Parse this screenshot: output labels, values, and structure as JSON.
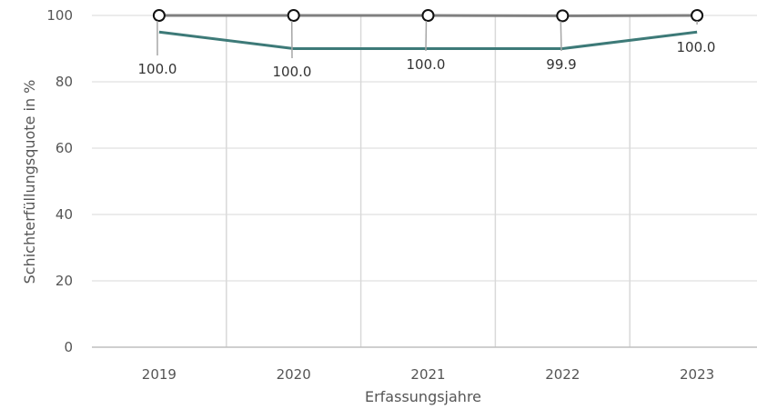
{
  "chart_data": {
    "type": "line",
    "title": "",
    "xlabel": "Erfassungsjahre",
    "ylabel": "Schichterfüllungsquote in %",
    "categories": [
      "2019",
      "2020",
      "2021",
      "2022",
      "2023"
    ],
    "ylim": [
      0,
      100
    ],
    "yticks": [
      0,
      20,
      40,
      60,
      80,
      100
    ],
    "grid": true,
    "series": [
      {
        "values": [
          100.0,
          100.0,
          100.0,
          99.9,
          100.0
        ],
        "labels": [
          "100.0",
          "100.0",
          "100.0",
          "99.9",
          "100.0"
        ],
        "color": "#7f7f7f",
        "marker": "open-circle"
      },
      {
        "values": [
          95,
          90,
          90,
          90,
          95
        ],
        "color": "#3d7a78"
      }
    ]
  }
}
